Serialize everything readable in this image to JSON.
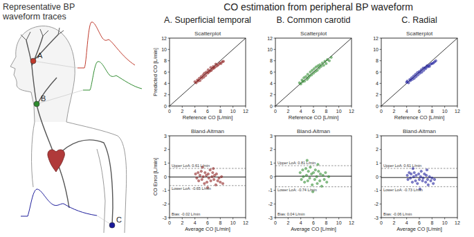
{
  "figure": {
    "title": "CO estimation from peripheral BP waveform",
    "left_title": [
      "Representative BP",
      "waveform traces"
    ],
    "sites": [
      {
        "label": "A",
        "color": "#c0392b"
      },
      {
        "label": "B",
        "color": "#2e8b2e"
      },
      {
        "label": "C",
        "color": "#1a1a9a"
      }
    ],
    "columns": [
      "A. Superficial temporal",
      "B. Common carotid",
      "C. Radial"
    ]
  },
  "chart_data": [
    {
      "type": "scatter",
      "title": "Scatterplot",
      "x_label": "Reference CO [L/min]",
      "y_label": "Predicted CO [L/min]",
      "xlim": [
        0,
        12
      ],
      "ylim": [
        0,
        12
      ],
      "xticks": [
        0,
        2,
        4,
        6,
        8,
        10,
        12
      ],
      "yticks": [
        0,
        2,
        4,
        6,
        8,
        10,
        12
      ],
      "marker": "circle",
      "color": "#8b1a1a",
      "x": [
        4.0,
        4.2,
        4.4,
        4.5,
        4.7,
        4.8,
        5.0,
        5.1,
        5.3,
        5.4,
        5.5,
        5.7,
        5.8,
        6.0,
        6.1,
        6.2,
        6.4,
        6.5,
        6.6,
        6.8,
        6.9,
        7.0,
        7.2,
        7.3,
        7.5,
        7.7,
        7.9,
        8.1,
        8.3,
        8.5
      ],
      "values": [
        4.3,
        4.1,
        4.6,
        4.4,
        4.9,
        4.5,
        5.2,
        4.9,
        5.5,
        5.1,
        5.8,
        5.4,
        6.0,
        5.8,
        6.4,
        6.0,
        6.2,
        6.8,
        6.3,
        6.6,
        7.0,
        6.7,
        6.9,
        7.4,
        7.1,
        7.3,
        7.6,
        7.5,
        7.8,
        7.9
      ]
    },
    {
      "type": "scatter",
      "title": "Scatterplot",
      "x_label": "Reference CO [L/min]",
      "xlim": [
        0,
        12
      ],
      "ylim": [
        0,
        12
      ],
      "xticks": [
        0,
        2,
        4,
        6,
        8,
        10,
        12
      ],
      "yticks": [
        0,
        2,
        4,
        6,
        8,
        10,
        12
      ],
      "marker": "circle",
      "color": "#2e8b2e",
      "x": [
        3.8,
        4.0,
        4.2,
        4.3,
        4.5,
        4.6,
        4.8,
        5.0,
        5.1,
        5.2,
        5.4,
        5.5,
        5.7,
        5.8,
        6.0,
        6.1,
        6.3,
        6.4,
        6.6,
        6.7,
        6.9,
        7.0,
        7.2,
        7.4,
        7.6,
        7.8,
        8.0,
        8.2,
        8.5,
        8.8
      ],
      "values": [
        4.1,
        3.9,
        4.6,
        4.3,
        5.0,
        4.4,
        5.2,
        4.7,
        5.6,
        5.0,
        5.3,
        6.0,
        5.5,
        6.3,
        5.8,
        6.6,
        6.1,
        6.9,
        6.3,
        7.1,
        6.7,
        7.3,
        7.0,
        7.6,
        7.2,
        7.9,
        7.5,
        8.2,
        8.0,
        8.6
      ]
    },
    {
      "type": "scatter",
      "title": "Scatterplot",
      "x_label": "Reference CO [L/min]",
      "xlim": [
        0,
        12
      ],
      "ylim": [
        0,
        12
      ],
      "xticks": [
        0,
        2,
        4,
        6,
        8,
        10,
        12
      ],
      "yticks": [
        0,
        2,
        4,
        6,
        8,
        10,
        12
      ],
      "marker": "circle",
      "color": "#1a1a9a",
      "x": [
        4.0,
        4.1,
        4.3,
        4.5,
        4.6,
        4.8,
        4.9,
        5.1,
        5.2,
        5.4,
        5.5,
        5.7,
        5.8,
        6.0,
        6.1,
        6.3,
        6.4,
        6.6,
        6.7,
        6.9,
        7.0,
        7.2,
        7.3,
        7.5,
        7.6,
        7.8,
        8.0,
        8.2,
        8.4,
        8.6
      ],
      "values": [
        4.2,
        4.4,
        4.1,
        4.7,
        4.5,
        5.0,
        4.7,
        5.3,
        4.9,
        5.6,
        5.2,
        5.9,
        5.5,
        6.1,
        5.8,
        6.4,
        6.0,
        6.7,
        6.3,
        6.8,
        6.6,
        7.1,
        6.9,
        7.2,
        7.0,
        7.4,
        7.5,
        7.6,
        7.8,
        8.0
      ]
    },
    {
      "type": "scatter",
      "title": "Bland-Altman",
      "x_label": "Average CO [L/min]",
      "y_label": "CO Error [L/min]",
      "xlim": [
        0,
        12
      ],
      "ylim": [
        -3,
        3
      ],
      "xticks": [
        0,
        2,
        4,
        6,
        8,
        10,
        12
      ],
      "yticks": [
        -3,
        -2,
        -1,
        0,
        1,
        2,
        3
      ],
      "marker": "circle",
      "color": "#8b1a1a",
      "x": [
        4.1,
        4.3,
        4.5,
        4.6,
        4.8,
        5.0,
        5.1,
        5.3,
        5.5,
        5.6,
        5.8,
        5.9,
        6.1,
        6.2,
        6.4,
        6.5,
        6.7,
        6.8,
        7.0,
        7.1,
        7.3,
        7.4,
        7.6,
        7.8,
        8.0,
        8.2,
        8.4,
        5.2,
        6.0,
        6.9
      ],
      "values": [
        0.2,
        -0.1,
        0.3,
        -0.3,
        0.1,
        0.4,
        -0.2,
        0.0,
        -0.5,
        0.3,
        0.1,
        -0.4,
        0.2,
        -0.1,
        0.5,
        -0.3,
        0.0,
        0.3,
        -0.2,
        0.1,
        -0.6,
        0.2,
        -0.3,
        -0.1,
        -0.4,
        0.0,
        -0.5,
        0.7,
        -0.8,
        0.6
      ],
      "bias": -0.02,
      "upper_loa": 0.61,
      "lower_loa": -0.65,
      "annotations": [
        "Upper LoA: 0.61 L/min",
        "Lower LoA: -0.65 L/min",
        "Bias: -0.02 L/min"
      ]
    },
    {
      "type": "scatter",
      "title": "Bland-Altman",
      "x_label": "Average CO [L/min]",
      "xlim": [
        0,
        12
      ],
      "ylim": [
        -3,
        3
      ],
      "xticks": [
        0,
        2,
        4,
        6,
        8,
        10,
        12
      ],
      "yticks": [
        -3,
        -2,
        -1,
        0,
        1,
        2,
        3
      ],
      "marker": "circle",
      "color": "#2e8b2e",
      "x": [
        3.9,
        4.1,
        4.3,
        4.4,
        4.6,
        4.8,
        4.9,
        5.1,
        5.2,
        5.4,
        5.5,
        5.7,
        5.8,
        6.0,
        6.2,
        6.3,
        6.5,
        6.6,
        6.8,
        7.0,
        7.1,
        7.3,
        7.5,
        7.7,
        7.9,
        8.1,
        8.4,
        5.0,
        5.9,
        6.7
      ],
      "values": [
        0.3,
        -0.2,
        0.5,
        0.0,
        -0.4,
        0.6,
        0.1,
        -0.3,
        0.4,
        -0.1,
        0.7,
        0.2,
        -0.6,
        0.3,
        -0.2,
        0.5,
        0.0,
        -0.5,
        0.4,
        -0.3,
        0.2,
        -0.7,
        0.1,
        -0.2,
        0.3,
        -0.4,
        0.0,
        1.2,
        -1.1,
        0.9
      ],
      "bias": 0.04,
      "upper_loa": 0.81,
      "lower_loa": -0.74,
      "annotations": [
        "Upper LoA: 0.81 L/min",
        "Lower LoA: -0.74 L/min",
        "Bias: 0.04 L/min"
      ]
    },
    {
      "type": "scatter",
      "title": "Bland-Altman",
      "x_label": "Average CO [L/min]",
      "xlim": [
        0,
        12
      ],
      "ylim": [
        -3,
        3
      ],
      "xticks": [
        0,
        2,
        4,
        6,
        8,
        10,
        12
      ],
      "yticks": [
        -3,
        -2,
        -1,
        0,
        1,
        2,
        3
      ],
      "marker": "circle",
      "color": "#1a1a9a",
      "x": [
        4.1,
        4.2,
        4.4,
        4.6,
        4.7,
        4.9,
        5.1,
        5.2,
        5.4,
        5.5,
        5.7,
        5.9,
        6.0,
        6.2,
        6.3,
        6.5,
        6.6,
        6.8,
        7.0,
        7.1,
        7.3,
        7.4,
        7.6,
        7.8,
        8.0,
        8.2,
        8.4,
        5.0,
        6.1,
        7.2
      ],
      "values": [
        0.1,
        -0.2,
        0.3,
        -0.1,
        0.2,
        -0.4,
        0.0,
        0.3,
        -0.3,
        0.1,
        -0.5,
        0.2,
        -0.2,
        0.0,
        0.4,
        -0.3,
        -0.1,
        0.2,
        -0.4,
        0.1,
        -0.2,
        -0.6,
        0.0,
        -0.3,
        -0.1,
        -0.5,
        -0.2,
        0.6,
        -0.9,
        0.5
      ],
      "bias": -0.06,
      "upper_loa": 0.61,
      "lower_loa": -0.73,
      "annotations": [
        "Upper LoA: 0.61 L/min",
        "Lower LoA: -0.73 L/min",
        "Bias: -0.06 L/min"
      ]
    }
  ]
}
